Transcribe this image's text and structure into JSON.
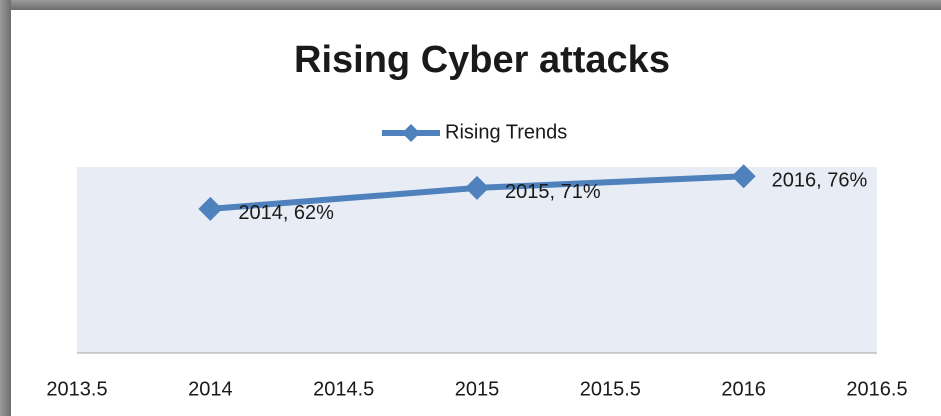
{
  "chart_data": {
    "type": "line",
    "title": "Rising Cyber attacks",
    "x": [
      2014,
      2015,
      2016
    ],
    "series": [
      {
        "name": "Rising Trends",
        "color": "#4f81bd",
        "values": [
          62,
          71,
          76
        ],
        "value_labels": [
          "2014, 62%",
          "2015, 71%",
          "2016, 76%"
        ]
      }
    ],
    "xlim": [
      2013.5,
      2016.5
    ],
    "xticks": [
      2013.5,
      2014,
      2014.5,
      2015,
      2015.5,
      2016,
      2016.5
    ],
    "ylim": [
      0,
      80
    ],
    "legend": "top",
    "plot_background": "#e8ecf4"
  }
}
